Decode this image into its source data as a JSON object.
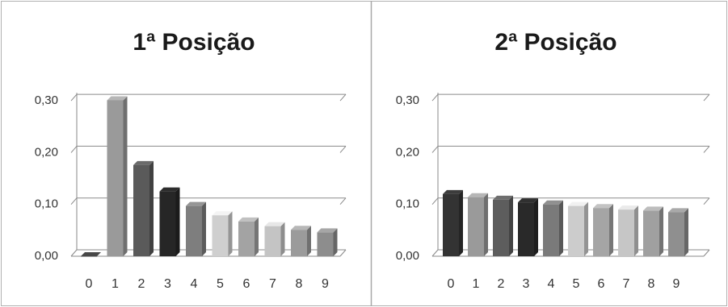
{
  "chart_data": [
    {
      "type": "bar",
      "title": "1ª Posição",
      "categories": [
        "0",
        "1",
        "2",
        "3",
        "4",
        "5",
        "6",
        "7",
        "8",
        "9"
      ],
      "values": [
        0.0,
        0.301,
        0.176,
        0.125,
        0.097,
        0.079,
        0.067,
        0.058,
        0.051,
        0.046
      ],
      "yticks": [
        "0,00",
        "0,10",
        "0,20",
        "0,30"
      ],
      "ylim": [
        0,
        0.3
      ],
      "grid": true,
      "colors": [
        "#3c3c3c",
        "#9a9a9a",
        "#5a5a5a",
        "#262626",
        "#7e7e7e",
        "#cfcfcf",
        "#a3a3a3",
        "#c4c4c4",
        "#9b9b9b",
        "#8d8d8d"
      ]
    },
    {
      "type": "bar",
      "title": "2ª Posição",
      "categories": [
        "0",
        "1",
        "2",
        "3",
        "4",
        "5",
        "6",
        "7",
        "8",
        "9"
      ],
      "values": [
        0.12,
        0.114,
        0.109,
        0.104,
        0.1,
        0.097,
        0.093,
        0.09,
        0.088,
        0.085
      ],
      "yticks": [
        "0,00",
        "0,10",
        "0,20",
        "0,30"
      ],
      "ylim": [
        0,
        0.3
      ],
      "grid": true,
      "colors": [
        "#333333",
        "#9a9a9a",
        "#5d5d5d",
        "#292929",
        "#7a7a7a",
        "#cccccc",
        "#a5a5a5",
        "#c6c6c6",
        "#a0a0a0",
        "#8f8f8f"
      ]
    }
  ]
}
